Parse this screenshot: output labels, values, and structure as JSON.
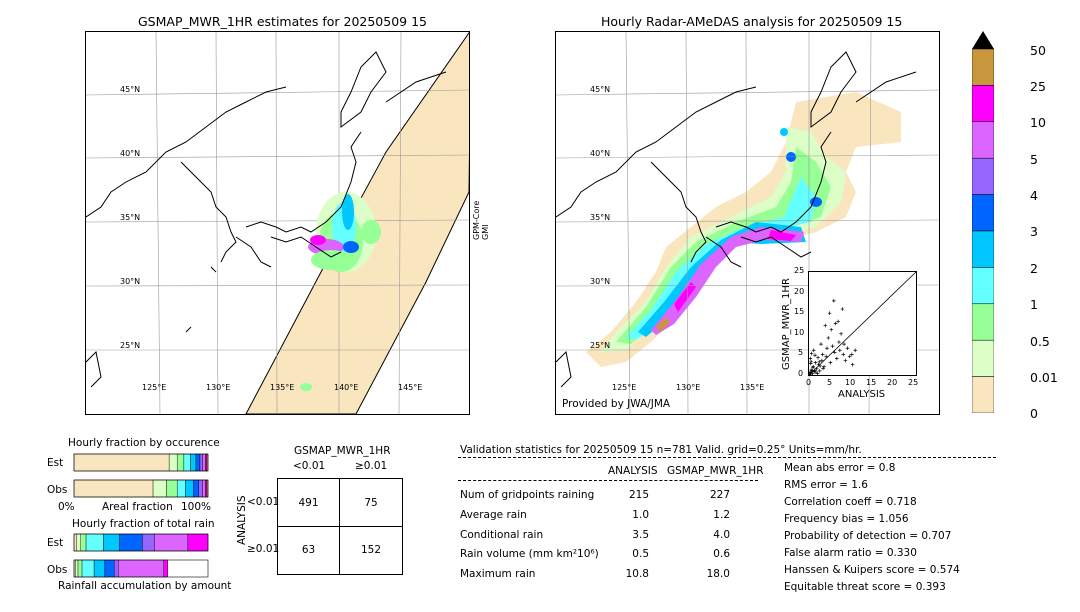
{
  "left_panel": {
    "title": "GSMAP_MWR_1HR estimates for 20250509 15",
    "side_label_1": "GPM-Core",
    "side_label_2": "GMI",
    "lat_labels": [
      "45°N",
      "40°N",
      "35°N",
      "30°N",
      "25°N"
    ],
    "lon_labels": [
      "125°E",
      "130°E",
      "135°E",
      "140°E",
      "145°E"
    ]
  },
  "right_panel": {
    "title": "Hourly Radar-AMeDAS analysis for 20250509 15",
    "credit": "Provided by JWA/JMA",
    "lat_labels": [
      "45°N",
      "40°N",
      "35°N",
      "30°N",
      "25°N"
    ],
    "lon_labels": [
      "125°E",
      "130°E",
      "135°E"
    ]
  },
  "colorbar": {
    "labels": [
      "50",
      "25",
      "10",
      "5",
      "4",
      "3",
      "2",
      "1",
      "0.5",
      "0.01",
      "0"
    ],
    "colors": [
      "#c8963c",
      "#ff00ff",
      "#dc64ff",
      "#9664ff",
      "#0064ff",
      "#00c8ff",
      "#64ffff",
      "#96ff96",
      "#dcffc8",
      "#fae6be"
    ]
  },
  "chart_data": [
    {
      "type": "scatter",
      "xlabel": "ANALYSIS",
      "ylabel": "GSMAP_MWR_1HR",
      "xlim": [
        0,
        25
      ],
      "ylim": [
        0,
        25
      ],
      "xticks": [
        "0",
        "5",
        "10",
        "15",
        "20",
        "25"
      ],
      "yticks": [
        "0",
        "5",
        "10",
        "15",
        "20",
        "25"
      ],
      "points": [
        [
          0.2,
          0.5
        ],
        [
          0.5,
          1.2
        ],
        [
          0.8,
          0.3
        ],
        [
          1.0,
          2.0
        ],
        [
          1.2,
          0.8
        ],
        [
          1.5,
          3.0
        ],
        [
          1.8,
          1.5
        ],
        [
          2.0,
          0.4
        ],
        [
          2.2,
          2.5
        ],
        [
          0.3,
          4.0
        ],
        [
          0.6,
          5.2
        ],
        [
          1.1,
          6.0
        ],
        [
          0.4,
          2.8
        ],
        [
          2.5,
          1.0
        ],
        [
          3.0,
          3.5
        ],
        [
          3.2,
          5.0
        ],
        [
          2.8,
          7.5
        ],
        [
          3.5,
          2.0
        ],
        [
          4.0,
          4.5
        ],
        [
          4.2,
          6.5
        ],
        [
          4.5,
          9.0
        ],
        [
          5.0,
          3.0
        ],
        [
          5.2,
          11.0
        ],
        [
          5.5,
          7.0
        ],
        [
          6.0,
          5.5
        ],
        [
          6.2,
          12.5
        ],
        [
          6.5,
          4.0
        ],
        [
          7.0,
          8.0
        ],
        [
          7.2,
          6.0
        ],
        [
          7.5,
          10.0
        ],
        [
          8.0,
          5.0
        ],
        [
          8.2,
          7.5
        ],
        [
          8.5,
          3.5
        ],
        [
          9.0,
          6.5
        ],
        [
          9.5,
          4.5
        ],
        [
          10.0,
          5.0
        ],
        [
          10.2,
          2.5
        ],
        [
          10.8,
          6.0
        ],
        [
          6.8,
          13.0
        ],
        [
          5.8,
          18.0
        ],
        [
          7.8,
          16.0
        ],
        [
          4.8,
          15.0
        ],
        [
          3.8,
          12.0
        ],
        [
          0.1,
          0.1
        ],
        [
          0.2,
          0.2
        ],
        [
          0.4,
          0.6
        ],
        [
          0.7,
          1.0
        ],
        [
          1.3,
          1.1
        ],
        [
          1.6,
          0.7
        ],
        [
          0.9,
          1.8
        ],
        [
          2.4,
          3.2
        ],
        [
          2.1,
          4.2
        ],
        [
          1.4,
          4.8
        ],
        [
          0.5,
          3.2
        ],
        [
          3.3,
          1.6
        ],
        [
          2.6,
          2.2
        ]
      ]
    },
    {
      "type": "bar",
      "title": "Hourly fraction by occurence",
      "rows": [
        "Est",
        "Obs"
      ],
      "xlabel": "Areal fraction",
      "xtick_left": "0%",
      "xtick_right": "100%",
      "series": [
        {
          "row": "Est",
          "values": [
            0.71,
            0.06,
            0.05,
            0.05,
            0.04,
            0.03,
            0.02,
            0.02,
            0.01,
            0.01
          ]
        },
        {
          "row": "Obs",
          "values": [
            0.59,
            0.1,
            0.08,
            0.06,
            0.06,
            0.04,
            0.03,
            0.02,
            0.01,
            0.01
          ]
        }
      ]
    },
    {
      "type": "bar",
      "title": "Hourly fraction of total rain",
      "rows": [
        "Est",
        "Obs"
      ],
      "xlabel": "Rainfall accumulation by amount",
      "series": [
        {
          "row": "Est",
          "values": [
            0.02,
            0.03,
            0.04,
            0.13,
            0.12,
            0.17,
            0.09,
            0.25,
            0.15,
            0.0
          ]
        },
        {
          "row": "Obs",
          "values": [
            0.01,
            0.02,
            0.03,
            0.09,
            0.08,
            0.07,
            0.03,
            0.34,
            0.03,
            0.0
          ]
        }
      ]
    },
    {
      "type": "table",
      "title": "GSMAP_MWR_1HR",
      "col_headers": [
        "<0.01",
        "≥0.01"
      ],
      "row_axis_label": "ANALYSIS",
      "row_headers": [
        "<0.01",
        "≥0.01"
      ],
      "cells": [
        [
          "491",
          "75"
        ],
        [
          "63",
          "152"
        ]
      ]
    }
  ],
  "validation": {
    "header": "Validation statistics for 20250509 15  n=781 Valid. grid=0.25° Units=mm/hr.",
    "col_analysis": "ANALYSIS",
    "col_gsmap": "GSMAP_MWR_1HR",
    "rows": [
      {
        "label": "Num of gridpoints raining",
        "analysis": "215",
        "gsmap": "227"
      },
      {
        "label": "Average rain",
        "analysis": "1.0",
        "gsmap": "1.2"
      },
      {
        "label": "Conditional rain",
        "analysis": "3.5",
        "gsmap": "4.0"
      },
      {
        "label": "Rain volume (mm km²10⁶)",
        "analysis": "0.5",
        "gsmap": "0.6"
      },
      {
        "label": "Maximum rain",
        "analysis": "10.8",
        "gsmap": "18.0"
      }
    ],
    "scores": [
      "Mean abs error =    0.8",
      "RMS error =    1.6",
      "Correlation coeff =  0.718",
      "Frequency bias =  1.056",
      "Probability of detection =  0.707",
      "False alarm ratio =  0.330",
      "Hanssen & Kuipers score =  0.574",
      "Equitable threat score =  0.393"
    ]
  }
}
